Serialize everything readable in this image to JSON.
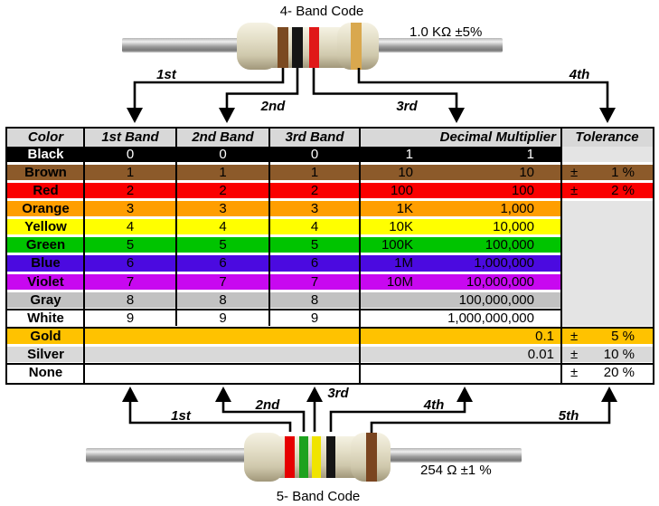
{
  "four_band": {
    "title": "4- Band Code",
    "value_label": "1.0 KΩ ±5%",
    "arrow_labels": [
      "1st",
      "2nd",
      "3rd",
      "4th"
    ],
    "bands": [
      {
        "name": "brown",
        "hex": "#7B4A21"
      },
      {
        "name": "black",
        "hex": "#151515"
      },
      {
        "name": "red",
        "hex": "#E01818"
      },
      {
        "name": "gold",
        "hex": "#D9A84E"
      }
    ]
  },
  "five_band": {
    "title": "5- Band Code",
    "value_label": "254 Ω ±1 %",
    "arrow_labels": [
      "1st",
      "2nd",
      "3rd",
      "4th",
      "5th"
    ],
    "bands": [
      {
        "name": "red",
        "hex": "#E60000"
      },
      {
        "name": "green",
        "hex": "#1EA21E"
      },
      {
        "name": "yellow",
        "hex": "#F0E400"
      },
      {
        "name": "black",
        "hex": "#151515"
      },
      {
        "name": "brown",
        "hex": "#7A4520"
      }
    ]
  },
  "table": {
    "headers": [
      "Color",
      "1st Band",
      "2nd Band",
      "3rd Band",
      "Decimal Multiplier",
      "Tolerance"
    ],
    "tol_sign": "±",
    "header_bg": "#D8D8D8",
    "empty_cell_bg": "#E4E4E4",
    "rows": [
      {
        "name": "Black",
        "bg": "#000000",
        "fg": "#FFFFFF",
        "bands": [
          "0",
          "0",
          "0"
        ],
        "mult_short": "1",
        "mult_long": "1",
        "tol": null,
        "tol_bg": "#E4E4E4"
      },
      {
        "name": "Brown",
        "bg": "#8C5A2A",
        "fg": "#000000",
        "bands": [
          "1",
          "1",
          "1"
        ],
        "mult_short": "10",
        "mult_long": "10",
        "tol": "1 %"
      },
      {
        "name": "Red",
        "bg": "#FA0000",
        "fg": "#000000",
        "bands": [
          "2",
          "2",
          "2"
        ],
        "mult_short": "100",
        "mult_long": "100",
        "tol": "2 %"
      },
      {
        "name": "Orange",
        "bg": "#FF9E00",
        "fg": "#000000",
        "bands": [
          "3",
          "3",
          "3"
        ],
        "mult_short": "1K",
        "mult_long": "1,000",
        "tol": null,
        "tol_merged": true
      },
      {
        "name": "Yellow",
        "bg": "#FFFF00",
        "fg": "#000000",
        "bands": [
          "4",
          "4",
          "4"
        ],
        "mult_short": "10K",
        "mult_long": "10,000",
        "tol": null,
        "tol_merged": true
      },
      {
        "name": "Green",
        "bg": "#00C400",
        "fg": "#000000",
        "bands": [
          "5",
          "5",
          "5"
        ],
        "mult_short": "100K",
        "mult_long": "100,000",
        "tol": null,
        "tol_merged": true
      },
      {
        "name": "Blue",
        "bg": "#4B0AE0",
        "fg": "#000000",
        "bands": [
          "6",
          "6",
          "6"
        ],
        "mult_short": "1M",
        "mult_long": "1,000,000",
        "tol": null,
        "tol_merged": true
      },
      {
        "name": "Violet",
        "bg": "#C808F0",
        "fg": "#000000",
        "bands": [
          "7",
          "7",
          "7"
        ],
        "mult_short": "10M",
        "mult_long": "10,000,000",
        "tol": null,
        "tol_merged": true
      },
      {
        "name": "Gray",
        "bg": "#C2C2C2",
        "fg": "#000000",
        "bands": [
          "8",
          "8",
          "8"
        ],
        "mult_short": "",
        "mult_long": "100,000,000",
        "tol": null,
        "tol_merged": true
      },
      {
        "name": "White",
        "bg": "#FFFFFF",
        "fg": "#000000",
        "bands": [
          "9",
          "9",
          "9"
        ],
        "mult_short": "",
        "mult_long": "1,000,000,000",
        "tol": null,
        "tol_merged": true
      },
      {
        "name": "Gold",
        "bg": "#FFC200",
        "fg": "#000000",
        "merged_bands": true,
        "mult_short": "",
        "mult_long": "0.1",
        "tight": true,
        "tol": "5 %"
      },
      {
        "name": "Silver",
        "bg": "#D9D9D9",
        "fg": "#000000",
        "merged_bands": true,
        "mult_short": "",
        "mult_long": "0.01",
        "tight": true,
        "tol": "10 %"
      },
      {
        "name": "None",
        "bg": "#FFFFFF",
        "fg": "#000000",
        "merged_bands": true,
        "mult_short": "",
        "mult_long": "",
        "tol": "20 %"
      }
    ]
  }
}
